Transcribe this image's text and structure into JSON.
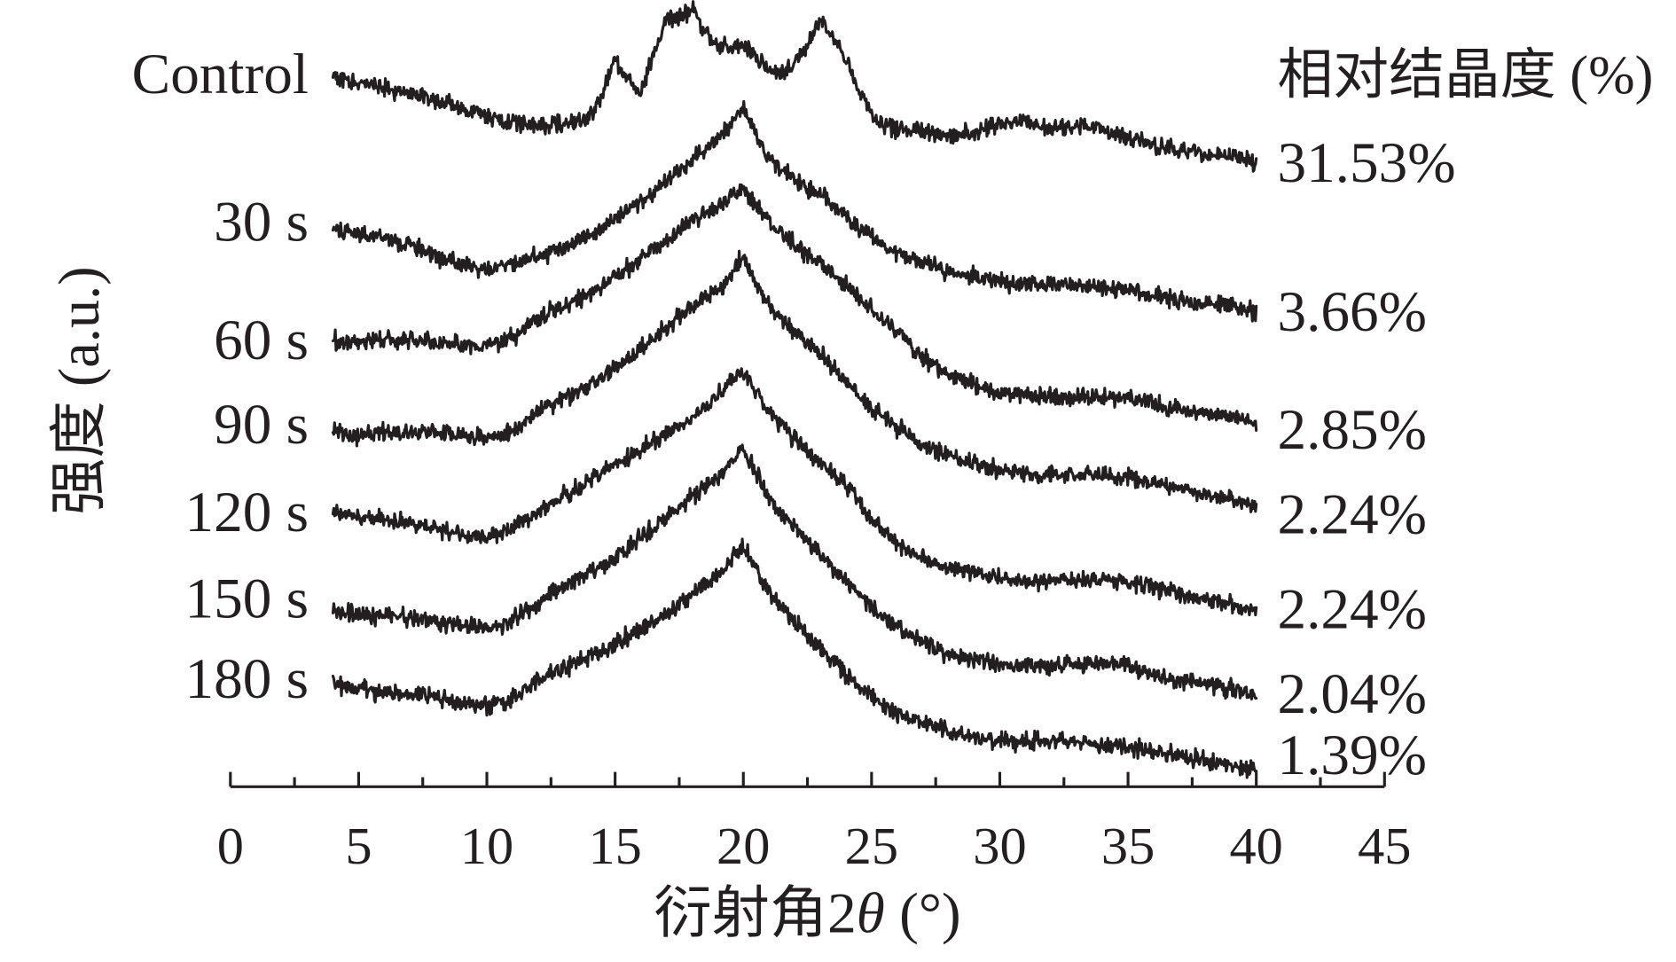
{
  "chart_data": {
    "type": "line",
    "title": "",
    "xlabel": "衍射角2θ (°)",
    "ylabel": "强度 (a.u.)",
    "xlim": [
      0,
      45
    ],
    "xticks": [
      0,
      5,
      10,
      15,
      20,
      25,
      30,
      35,
      40,
      45
    ],
    "minor_tick_step": 2.5,
    "grid": false,
    "legend": "none",
    "stacked": true,
    "line_color": "#231f20",
    "crystallinity_header": "相对结晶度 (%)",
    "series": [
      {
        "name": "Control",
        "crystallinity": "31.53%",
        "x": [
          4,
          5,
          6,
          7,
          8,
          9,
          10,
          11,
          12,
          13,
          13.5,
          14,
          14.5,
          15,
          15.5,
          16,
          16.5,
          17,
          17.5,
          18,
          18.5,
          19,
          19.5,
          20,
          20.5,
          21,
          21.5,
          22,
          22.5,
          23,
          23.5,
          24,
          24.5,
          25,
          25.5,
          26,
          27,
          28,
          29,
          30,
          31,
          32,
          33,
          34,
          35,
          36,
          37,
          38,
          39,
          40
        ],
        "y": [
          88,
          82,
          77,
          72,
          65,
          57,
          48,
          42,
          42,
          44,
          45,
          48,
          72,
          102,
          85,
          72,
          110,
          145,
          142,
          152,
          130,
          115,
          118,
          118,
          105,
          95,
          90,
          100,
          120,
          140,
          125,
          105,
          75,
          52,
          42,
          38,
          35,
          32,
          35,
          42,
          44,
          38,
          42,
          38,
          30,
          22,
          18,
          14,
          12,
          5
        ]
      },
      {
        "name": "30 s",
        "crystallinity": "3.66%",
        "x": [
          4,
          5,
          6,
          7,
          8,
          9,
          10,
          11,
          12,
          13,
          14,
          15,
          16,
          17,
          18,
          19,
          19.5,
          20,
          20.5,
          21,
          22,
          23,
          24,
          25,
          26,
          27,
          28,
          29,
          30,
          31,
          32,
          33,
          34,
          35,
          36,
          37,
          38,
          39,
          40
        ],
        "y": [
          85,
          80,
          75,
          68,
          58,
          50,
          45,
          50,
          57,
          65,
          78,
          92,
          110,
          128,
          148,
          170,
          182,
          198,
          172,
          152,
          130,
          115,
          95,
          75,
          60,
          50,
          42,
          38,
          32,
          30,
          32,
          28,
          28,
          25,
          20,
          15,
          12,
          10,
          4
        ]
      },
      {
        "name": "60 s",
        "crystallinity": "2.85%",
        "x": [
          4,
          5,
          6,
          7,
          8,
          9,
          10,
          11,
          12,
          13,
          14,
          15,
          16,
          17,
          18,
          19,
          19.5,
          20,
          20.5,
          21,
          22,
          23,
          24,
          25,
          26,
          27,
          28,
          29,
          30,
          31,
          32,
          33,
          34,
          35,
          36,
          37,
          38,
          39,
          40
        ],
        "y": [
          88,
          85,
          88,
          88,
          85,
          85,
          82,
          92,
          110,
          120,
          132,
          148,
          165,
          182,
          202,
          215,
          225,
          232,
          215,
          200,
          178,
          160,
          140,
          118,
          95,
          72,
          55,
          45,
          38,
          37,
          35,
          34,
          34,
          32,
          27,
          22,
          18,
          15,
          8
        ]
      },
      {
        "name": "90 s",
        "crystallinity": "2.24%",
        "x": [
          4,
          5,
          6,
          7,
          8,
          9,
          10,
          11,
          12,
          13,
          14,
          15,
          16,
          17,
          18,
          19,
          19.5,
          20,
          20.5,
          21,
          22,
          23,
          24,
          25,
          26,
          27,
          28,
          29,
          30,
          31,
          32,
          33,
          34,
          35,
          36,
          37,
          38,
          39,
          40
        ],
        "y": [
          80,
          78,
          80,
          82,
          82,
          78,
          75,
          82,
          100,
          112,
          125,
          142,
          160,
          180,
          200,
          215,
          228,
          248,
          220,
          200,
          175,
          155,
          130,
          105,
          85,
          70,
          58,
          50,
          45,
          40,
          40,
          40,
          40,
          38,
          32,
          28,
          22,
          18,
          10
        ]
      },
      {
        "name": "120 s",
        "crystallinity": "2.24%",
        "x": [
          4,
          5,
          6,
          7,
          8,
          9,
          10,
          11,
          12,
          13,
          14,
          15,
          16,
          17,
          18,
          19,
          19.5,
          20,
          20.5,
          21,
          22,
          23,
          24,
          25,
          26,
          27,
          28,
          29,
          30,
          31,
          32,
          33,
          34,
          35,
          36,
          37,
          38,
          39,
          40
        ],
        "y": [
          105,
          100,
          98,
          95,
          90,
          85,
          80,
          90,
          105,
          120,
          135,
          150,
          165,
          180,
          195,
          215,
          230,
          238,
          220,
          200,
          175,
          150,
          130,
          100,
          75,
          60,
          52,
          48,
          42,
          40,
          40,
          42,
          40,
          38,
          34,
          28,
          22,
          18,
          12
        ]
      },
      {
        "name": "150 s",
        "crystallinity": "2.04%",
        "x": [
          4,
          5,
          6,
          7,
          8,
          9,
          10,
          11,
          12,
          13,
          14,
          15,
          16,
          17,
          18,
          19,
          19.5,
          20,
          20.5,
          21,
          22,
          23,
          24,
          25,
          26,
          27,
          28,
          29,
          30,
          31,
          32,
          33,
          34,
          35,
          36,
          37,
          38,
          39,
          40
        ],
        "y": [
          92,
          88,
          87,
          85,
          82,
          78,
          75,
          82,
          100,
          115,
          127,
          142,
          160,
          180,
          200,
          218,
          230,
          245,
          220,
          200,
          170,
          145,
          120,
          95,
          75,
          62,
          50,
          45,
          40,
          40,
          40,
          42,
          42,
          40,
          32,
          27,
          22,
          18,
          12
        ]
      },
      {
        "name": "180 s",
        "crystallinity": "1.39%",
        "x": [
          4,
          5,
          6,
          7,
          8,
          9,
          10,
          11,
          12,
          13,
          14,
          15,
          16,
          17,
          18,
          19,
          19.5,
          20,
          20.5,
          21,
          22,
          23,
          24,
          25,
          26,
          27,
          28,
          29,
          30,
          31,
          32,
          33,
          34,
          35,
          36,
          37,
          38,
          39,
          40
        ],
        "y": [
          92,
          88,
          85,
          82,
          80,
          75,
          70,
          78,
          95,
          108,
          118,
          130,
          145,
          160,
          178,
          195,
          210,
          222,
          200,
          180,
          150,
          125,
          102,
          80,
          65,
          55,
          48,
          42,
          38,
          37,
          38,
          38,
          35,
          32,
          28,
          24,
          20,
          16,
          10
        ]
      }
    ]
  }
}
